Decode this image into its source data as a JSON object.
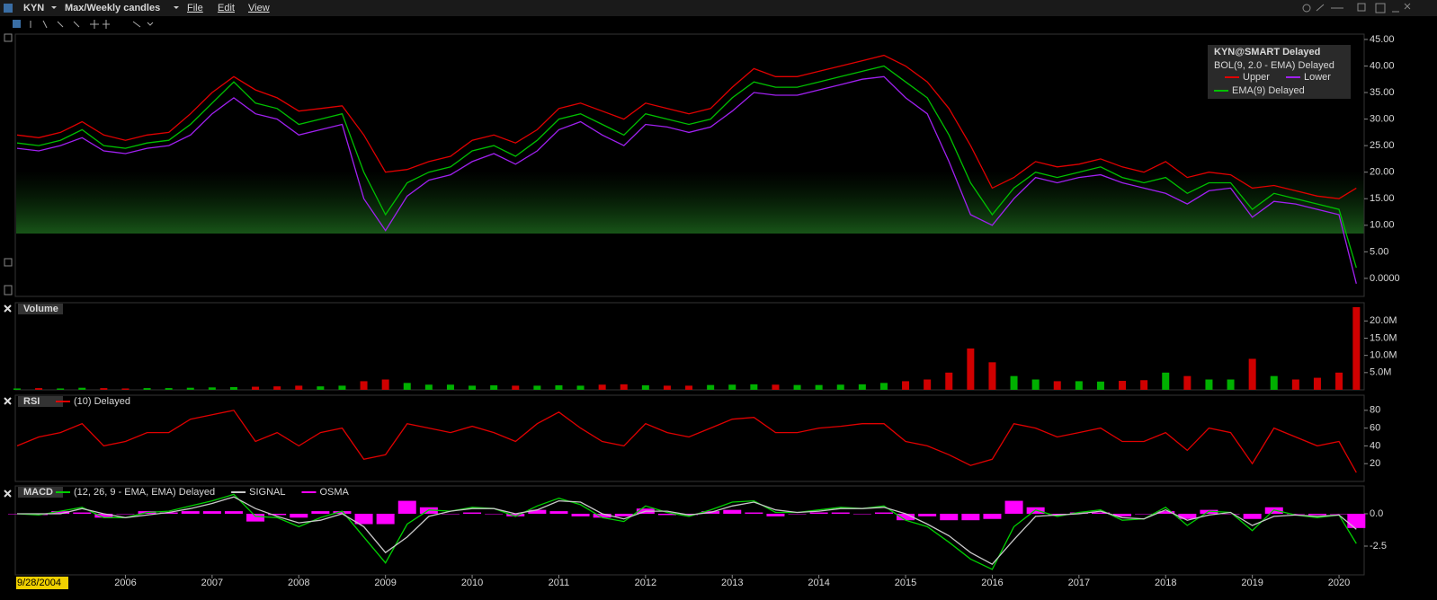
{
  "toolbar": {
    "symbol": "KYN",
    "layout": "Max/Weekly candles",
    "menus": [
      "File",
      "Edit",
      "View"
    ]
  },
  "chart_data": [
    {
      "type": "line",
      "legend_title": "KYN@SMART Delayed",
      "indicator": "BOL(9, 2.0 - EMA) Delayed",
      "x": [
        2004.75,
        2005,
        2005.25,
        2005.5,
        2005.75,
        2006,
        2006.25,
        2006.5,
        2006.75,
        2007,
        2007.25,
        2007.5,
        2007.75,
        2008,
        2008.25,
        2008.5,
        2008.75,
        2009,
        2009.25,
        2009.5,
        2009.75,
        2010,
        2010.25,
        2010.5,
        2010.75,
        2011,
        2011.25,
        2011.5,
        2011.75,
        2012,
        2012.25,
        2012.5,
        2012.75,
        2013,
        2013.25,
        2013.5,
        2013.75,
        2014,
        2014.25,
        2014.5,
        2014.75,
        2015,
        2015.25,
        2015.5,
        2015.75,
        2016,
        2016.25,
        2016.5,
        2016.75,
        2017,
        2017.25,
        2017.5,
        2017.75,
        2018,
        2018.25,
        2018.5,
        2018.75,
        2019,
        2019.25,
        2019.5,
        2019.75,
        2020,
        2020.2
      ],
      "xlim": [
        2004.74,
        2020.29
      ],
      "series": [
        {
          "name": "Upper",
          "color": "#e00000",
          "values": [
            27,
            26.5,
            27.5,
            29.5,
            27,
            26,
            27,
            27.5,
            31,
            35,
            38,
            35.5,
            34,
            31.5,
            32,
            32.5,
            27,
            20,
            20.5,
            22,
            23,
            26,
            27,
            25.5,
            28,
            32,
            33,
            31.5,
            30,
            33,
            32,
            31,
            32,
            36,
            39.5,
            38,
            38,
            39,
            40,
            41,
            42,
            40,
            37,
            32,
            25,
            17,
            19,
            22,
            21,
            21.5,
            22.5,
            21,
            20,
            22,
            19,
            20,
            19.5,
            17,
            17.5,
            16.5,
            15.5,
            15,
            17
          ]
        },
        {
          "name": "Lower",
          "color": "#a020f0",
          "values": [
            24.5,
            24,
            25,
            26.5,
            24,
            23.5,
            24.5,
            25,
            27,
            31,
            34,
            31,
            30,
            27,
            28,
            29,
            15,
            9,
            15.5,
            18.5,
            19.5,
            22,
            23.5,
            21.5,
            24,
            28,
            29.5,
            27,
            25,
            29,
            28.5,
            27.5,
            28.5,
            31.5,
            35,
            34.5,
            34.5,
            35.5,
            36.5,
            37.5,
            38,
            34,
            31,
            22,
            12,
            10,
            15,
            19,
            18,
            19,
            19.5,
            18,
            17,
            16,
            14,
            16.5,
            17,
            11.5,
            14.5,
            14,
            13,
            12,
            -1
          ]
        },
        {
          "name": "EMA(9) Delayed",
          "color": "#00c000",
          "values": [
            25.5,
            25,
            26,
            28,
            25,
            24.5,
            25.5,
            26,
            29,
            33,
            37,
            33,
            32,
            29,
            30,
            31,
            20,
            12,
            18,
            20,
            21,
            24,
            25,
            23,
            26,
            30,
            31,
            29,
            27,
            31,
            30,
            29,
            30,
            34,
            37,
            36,
            36,
            37,
            38,
            39,
            40,
            37,
            34,
            27,
            18,
            12,
            17,
            20,
            19,
            20,
            21,
            19,
            18,
            19,
            16,
            18,
            18,
            13,
            16,
            15,
            14,
            13,
            2
          ]
        }
      ],
      "ylim": [
        -3.4,
        46
      ],
      "yticks": [
        {
          "value": 45,
          "label": "45.00"
        },
        {
          "value": 40,
          "label": "40.00"
        },
        {
          "value": 35,
          "label": "35.00"
        },
        {
          "value": 30,
          "label": "30.00"
        },
        {
          "value": 25,
          "label": "25.00"
        },
        {
          "value": 20,
          "label": "20.00"
        },
        {
          "value": 15,
          "label": "15.00"
        },
        {
          "value": 10,
          "label": "10.00"
        },
        {
          "value": 5,
          "label": "5.00"
        },
        {
          "value": 0,
          "label": "0.0000"
        }
      ]
    },
    {
      "type": "bar",
      "title": "Volume",
      "up_color": "#00b000",
      "down_color": "#d00000",
      "x": [
        2004.75,
        2005,
        2005.25,
        2005.5,
        2005.75,
        2006,
        2006.25,
        2006.5,
        2006.75,
        2007,
        2007.25,
        2007.5,
        2007.75,
        2008,
        2008.25,
        2008.5,
        2008.75,
        2009,
        2009.25,
        2009.5,
        2009.75,
        2010,
        2010.25,
        2010.5,
        2010.75,
        2011,
        2011.25,
        2011.5,
        2011.75,
        2012,
        2012.25,
        2012.5,
        2012.75,
        2013,
        2013.25,
        2013.5,
        2013.75,
        2014,
        2014.25,
        2014.5,
        2014.75,
        2015,
        2015.25,
        2015.5,
        2015.75,
        2016,
        2016.25,
        2016.5,
        2016.75,
        2017,
        2017.25,
        2017.5,
        2017.75,
        2018,
        2018.25,
        2018.5,
        2018.75,
        2019,
        2019.25,
        2019.5,
        2019.75,
        2020,
        2020.2
      ],
      "xlim": [
        2004.74,
        2020.29
      ],
      "values": [
        400000,
        500000,
        400000,
        600000,
        500000,
        400000,
        500000,
        500000,
        600000,
        700000,
        800000,
        900000,
        1000000,
        1200000,
        1000000,
        1200000,
        2500000,
        3000000,
        2000000,
        1500000,
        1500000,
        1200000,
        1300000,
        1200000,
        1200000,
        1300000,
        1200000,
        1500000,
        1600000,
        1300000,
        1200000,
        1200000,
        1400000,
        1500000,
        1600000,
        1500000,
        1400000,
        1400000,
        1500000,
        1600000,
        2000000,
        2500000,
        3000000,
        5000000,
        12000000,
        8000000,
        4000000,
        3000000,
        2500000,
        2500000,
        2400000,
        2600000,
        2800000,
        5000000,
        4000000,
        3000000,
        3000000,
        9000000,
        4000000,
        3000000,
        3500000,
        5000000,
        24000000
      ],
      "ylim": [
        0,
        25300000
      ],
      "yticks": [
        {
          "value": 20000000,
          "label": "20.0M"
        },
        {
          "value": 15000000,
          "label": "15.0M"
        },
        {
          "value": 10000000,
          "label": "10.0M"
        },
        {
          "value": 5000000,
          "label": "5.0M"
        }
      ]
    },
    {
      "type": "line",
      "title": "RSI",
      "x": [
        2004.75,
        2005,
        2005.25,
        2005.5,
        2005.75,
        2006,
        2006.25,
        2006.5,
        2006.75,
        2007,
        2007.25,
        2007.5,
        2007.75,
        2008,
        2008.25,
        2008.5,
        2008.75,
        2009,
        2009.25,
        2009.5,
        2009.75,
        2010,
        2010.25,
        2010.5,
        2010.75,
        2011,
        2011.25,
        2011.5,
        2011.75,
        2012,
        2012.25,
        2012.5,
        2012.75,
        2013,
        2013.25,
        2013.5,
        2013.75,
        2014,
        2014.25,
        2014.5,
        2014.75,
        2015,
        2015.25,
        2015.5,
        2015.75,
        2016,
        2016.25,
        2016.5,
        2016.75,
        2017,
        2017.25,
        2017.5,
        2017.75,
        2018,
        2018.25,
        2018.5,
        2018.75,
        2019,
        2019.25,
        2019.5,
        2019.75,
        2020,
        2020.2
      ],
      "xlim": [
        2004.74,
        2020.29
      ],
      "series": [
        {
          "name": "(10) Delayed",
          "color": "#e00000",
          "values": [
            40,
            50,
            55,
            65,
            40,
            45,
            55,
            55,
            70,
            75,
            80,
            45,
            55,
            40,
            55,
            60,
            25,
            30,
            65,
            60,
            55,
            62,
            55,
            45,
            65,
            78,
            60,
            45,
            40,
            65,
            55,
            50,
            60,
            70,
            72,
            55,
            55,
            60,
            62,
            65,
            65,
            45,
            40,
            30,
            18,
            25,
            65,
            60,
            50,
            55,
            60,
            45,
            45,
            55,
            35,
            60,
            55,
            20,
            60,
            50,
            40,
            45,
            10
          ]
        }
      ],
      "ylim": [
        0,
        97
      ],
      "yticks": [
        80,
        60,
        40,
        20
      ]
    },
    {
      "type": "line",
      "title": "MACD",
      "start_label": "9/28/2004",
      "x": [
        2004.75,
        2005,
        2005.25,
        2005.5,
        2005.75,
        2006,
        2006.25,
        2006.5,
        2006.75,
        2007,
        2007.25,
        2007.5,
        2007.75,
        2008,
        2008.25,
        2008.5,
        2008.75,
        2009,
        2009.25,
        2009.5,
        2009.75,
        2010,
        2010.25,
        2010.5,
        2010.75,
        2011,
        2011.25,
        2011.5,
        2011.75,
        2012,
        2012.25,
        2012.5,
        2012.75,
        2013,
        2013.25,
        2013.5,
        2013.75,
        2014,
        2014.25,
        2014.5,
        2014.75,
        2015,
        2015.25,
        2015.5,
        2015.75,
        2016,
        2016.25,
        2016.5,
        2016.75,
        2017,
        2017.25,
        2017.5,
        2017.75,
        2018,
        2018.25,
        2018.5,
        2018.75,
        2019,
        2019.25,
        2019.5,
        2019.75,
        2020,
        2020.2
      ],
      "xlim": [
        2004.74,
        2020.29
      ],
      "xticks": [
        2006,
        2007,
        2008,
        2009,
        2010,
        2011,
        2012,
        2013,
        2014,
        2015,
        2016,
        2017,
        2018,
        2019,
        2020
      ],
      "series": [
        {
          "name": "OSMA",
          "color": "#ff00ff",
          "kind": "bar",
          "values": [
            0,
            -0.1,
            0.2,
            0.1,
            -0.3,
            0,
            0.2,
            0.1,
            0.2,
            0.2,
            0.2,
            -0.6,
            -0.1,
            -0.3,
            0.2,
            0.2,
            -0.8,
            -0.8,
            1,
            0.5,
            0,
            0.1,
            0,
            -0.2,
            0.3,
            0.2,
            -0.2,
            -0.3,
            -0.2,
            0.4,
            -0.1,
            -0.1,
            0.2,
            0.3,
            0.1,
            -0.2,
            0,
            0.1,
            0.1,
            0,
            0.1,
            -0.5,
            -0.2,
            -0.5,
            -0.5,
            -0.4,
            1,
            0.5,
            -0.1,
            0.1,
            0.1,
            -0.2,
            0,
            0.2,
            -0.4,
            0.3,
            0,
            -0.4,
            0.5,
            0,
            -0.1,
            0,
            -1.1
          ]
        },
        {
          "name": "(12, 26, 9 - EMA, EMA) Delayed",
          "color": "#00d000",
          "values": [
            0,
            -0.1,
            0.2,
            0.5,
            -0.3,
            -0.3,
            0.1,
            0.2,
            0.6,
            1,
            1.5,
            -0.2,
            -0.3,
            -1,
            -0.3,
            0.2,
            -1.8,
            -3.8,
            -0.8,
            0.3,
            0.2,
            0.5,
            0.4,
            -0.2,
            0.6,
            1.2,
            0.7,
            -0.3,
            -0.6,
            0.6,
            0.1,
            -0.2,
            0.3,
            0.9,
            1,
            0.1,
            0.1,
            0.3,
            0.5,
            0.4,
            0.6,
            -0.5,
            -1,
            -2.2,
            -3.5,
            -4.3,
            -1,
            0.3,
            -0.2,
            0.1,
            0.3,
            -0.5,
            -0.4,
            0.5,
            -0.9,
            0.2,
            0.1,
            -1.3,
            0.3,
            -0.1,
            -0.3,
            -0.1,
            -2.3
          ]
        },
        {
          "name": "SIGNAL",
          "color": "#c8c8c8",
          "values": [
            0,
            0,
            0,
            0.4,
            0,
            -0.3,
            -0.1,
            0.1,
            0.4,
            0.8,
            1.3,
            0.4,
            -0.2,
            -0.7,
            -0.5,
            0,
            -1,
            -3,
            -1.8,
            -0.2,
            0.2,
            0.4,
            0.4,
            0,
            0.3,
            1,
            0.9,
            0,
            -0.4,
            0.2,
            0.2,
            -0.1,
            0.1,
            0.6,
            0.9,
            0.3,
            0.1,
            0.2,
            0.4,
            0.4,
            0.5,
            0,
            -0.8,
            -1.7,
            -3,
            -3.9,
            -2,
            -0.2,
            -0.1,
            0,
            0.2,
            -0.3,
            -0.4,
            0.3,
            -0.5,
            -0.1,
            0.1,
            -0.9,
            -0.2,
            -0.1,
            -0.2,
            -0.1,
            -1.2
          ]
        }
      ],
      "ylim": [
        -4.72,
        2.15
      ],
      "yticks": [
        {
          "value": 0,
          "label": "0.0"
        },
        -2.5
      ]
    }
  ]
}
